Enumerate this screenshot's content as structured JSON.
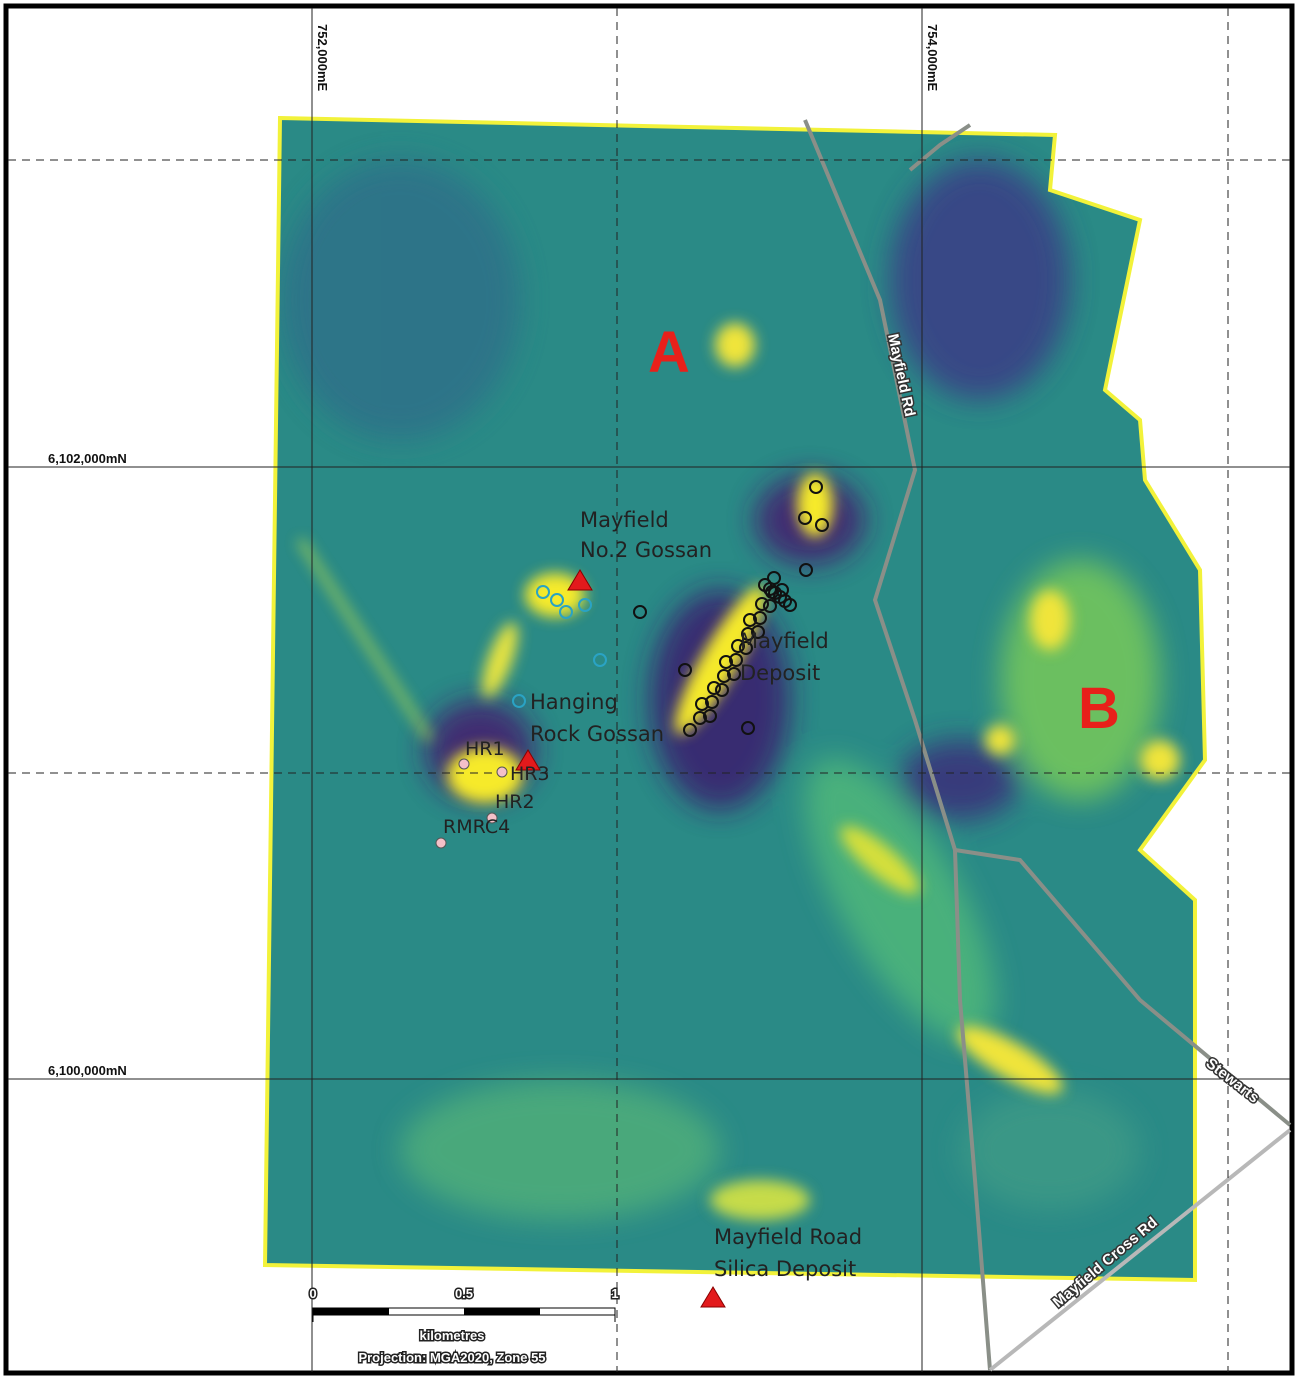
{
  "grid_labels": {
    "easting": [
      "752,000mE",
      "754,000mE"
    ],
    "northing": [
      "6,102,000mN",
      "6,100,000mN"
    ]
  },
  "zones": [
    "A",
    "B"
  ],
  "features": [
    {
      "lines": [
        "Mayfield",
        "No.2 Gossan"
      ]
    },
    {
      "lines": [
        "Mayfield",
        "Deposit"
      ]
    },
    {
      "lines": [
        "Hanging",
        "Rock Gossan"
      ]
    },
    {
      "lines": [
        "Mayfield Road",
        "Silica Deposit"
      ]
    }
  ],
  "drill_holes": [
    "HR1",
    "HR3",
    "HR2",
    "RMRC4"
  ],
  "roads": [
    "Mayfield Rd",
    "Stewarts",
    "Mayfield Cross Rd"
  ],
  "scale_bar": {
    "ticks": [
      "0",
      "0.5",
      "1"
    ],
    "unit": "kilometres",
    "projection": "Projection: MGA2020, Zone 55"
  }
}
